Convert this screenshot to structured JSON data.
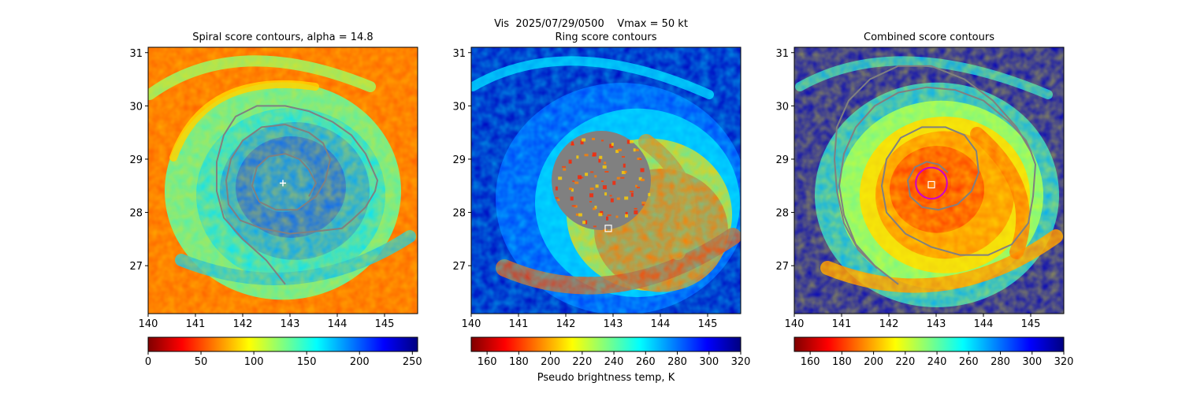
{
  "figure": {
    "suptitle": "Vis  2025/07/29/0500    Vmax = 50 kt",
    "colorbar_label": "Pseudo brightness temp, K"
  },
  "chart_data": [
    {
      "type": "heatmap",
      "title": "Spiral score contours, alpha = 14.8",
      "xlim": [
        140,
        145.7
      ],
      "ylim": [
        26.1,
        31.1
      ],
      "xticks": [
        140,
        141,
        142,
        143,
        144,
        145
      ],
      "yticks": [
        27,
        28,
        29,
        30,
        31
      ],
      "colormap": "jet_r",
      "colorbar": {
        "range": [
          0,
          255
        ],
        "ticks": [
          0,
          50,
          100,
          150,
          200,
          250
        ]
      },
      "center_marker": {
        "type": "plus",
        "x": 142.85,
        "y": 28.55,
        "color": "#ffffff"
      },
      "spiral_contour": {
        "color": "#808080",
        "points": [
          [
            142.9,
            26.65
          ],
          [
            142.5,
            27.1
          ],
          [
            142.0,
            27.5
          ],
          [
            141.6,
            27.9
          ],
          [
            141.45,
            28.4
          ],
          [
            141.45,
            28.95
          ],
          [
            141.6,
            29.45
          ],
          [
            141.85,
            29.8
          ],
          [
            142.3,
            30.0
          ],
          [
            142.9,
            30.0
          ],
          [
            143.4,
            29.9
          ],
          [
            143.9,
            29.7
          ],
          [
            144.3,
            29.45
          ],
          [
            144.6,
            29.1
          ],
          [
            144.85,
            28.6
          ],
          [
            144.8,
            28.4
          ],
          [
            144.6,
            28.1
          ],
          [
            144.3,
            27.85
          ],
          [
            144.1,
            27.7
          ],
          [
            143.6,
            27.65
          ],
          [
            143.0,
            27.6
          ],
          [
            142.4,
            27.7
          ],
          [
            141.95,
            27.85
          ],
          [
            141.7,
            28.15
          ],
          [
            141.65,
            28.6
          ],
          [
            141.75,
            29.0
          ],
          [
            142.0,
            29.35
          ],
          [
            142.4,
            29.6
          ],
          [
            142.9,
            29.65
          ],
          [
            143.4,
            29.5
          ],
          [
            143.7,
            29.3
          ],
          [
            143.85,
            29.0
          ],
          [
            143.75,
            28.6
          ],
          [
            143.55,
            28.3
          ],
          [
            143.15,
            28.05
          ],
          [
            142.7,
            28.05
          ],
          [
            142.35,
            28.2
          ],
          [
            142.2,
            28.5
          ],
          [
            142.3,
            28.85
          ],
          [
            142.55,
            29.05
          ],
          [
            142.9,
            29.1
          ],
          [
            143.2,
            29.0
          ],
          [
            143.4,
            28.8
          ],
          [
            143.55,
            28.55
          ],
          [
            143.4,
            28.3
          ]
        ]
      }
    },
    {
      "type": "heatmap",
      "title": "Ring score contours",
      "xlim": [
        140,
        145.7
      ],
      "ylim": [
        26.1,
        31.1
      ],
      "xticks": [
        140,
        141,
        142,
        143,
        144,
        145
      ],
      "yticks": [
        27,
        28,
        29,
        30,
        31
      ],
      "colormap": "jet_r",
      "colorbar": {
        "range": [
          150,
          320
        ],
        "ticks": [
          160,
          180,
          200,
          220,
          240,
          260,
          280,
          300,
          320
        ]
      },
      "masked_disk": {
        "center": [
          142.75,
          28.6
        ],
        "radius_deg": 1.05,
        "color": "#808080"
      },
      "square_marker": {
        "x": 142.9,
        "y": 27.7,
        "color": "#ffffff"
      }
    },
    {
      "type": "heatmap",
      "title": "Combined score contours",
      "xlim": [
        140,
        145.7
      ],
      "ylim": [
        26.1,
        31.1
      ],
      "xticks": [
        140,
        141,
        142,
        143,
        144,
        145
      ],
      "yticks": [
        27,
        28,
        29,
        30,
        31
      ],
      "colormap": "jet_r",
      "colorbar": {
        "range": [
          150,
          320
        ],
        "ticks": [
          160,
          180,
          200,
          220,
          240,
          260,
          280,
          300,
          320
        ]
      },
      "circle_marker": {
        "x": 142.9,
        "y": 28.55,
        "radius_deg": 0.33,
        "color": "#cc00cc"
      },
      "square_marker": {
        "x": 142.9,
        "y": 28.52,
        "color": "#ffffff"
      },
      "spiral_contour": {
        "color": "#808080",
        "points": [
          [
            142.2,
            26.65
          ],
          [
            141.7,
            27.0
          ],
          [
            141.3,
            27.4
          ],
          [
            141.05,
            27.95
          ],
          [
            140.95,
            28.5
          ],
          [
            141.05,
            29.1
          ],
          [
            141.3,
            29.6
          ],
          [
            141.7,
            30.0
          ],
          [
            142.2,
            30.25
          ],
          [
            142.8,
            30.35
          ],
          [
            143.4,
            30.3
          ],
          [
            144.0,
            30.1
          ],
          [
            144.55,
            29.7
          ],
          [
            144.9,
            29.35
          ],
          [
            145.0,
            29.15
          ],
          [
            145.1,
            28.9
          ],
          [
            145.05,
            28.3
          ],
          [
            144.95,
            27.8
          ],
          [
            144.6,
            27.4
          ],
          [
            144.1,
            27.2
          ],
          [
            143.5,
            27.2
          ],
          [
            142.9,
            27.35
          ],
          [
            142.35,
            27.6
          ],
          [
            141.95,
            28.0
          ],
          [
            141.85,
            28.5
          ],
          [
            141.95,
            29.0
          ],
          [
            142.25,
            29.4
          ],
          [
            142.7,
            29.6
          ],
          [
            143.2,
            29.6
          ],
          [
            143.6,
            29.45
          ],
          [
            143.85,
            29.15
          ],
          [
            143.9,
            28.75
          ],
          [
            143.75,
            28.4
          ],
          [
            143.45,
            28.15
          ],
          [
            143.05,
            28.05
          ],
          [
            142.7,
            28.1
          ],
          [
            142.45,
            28.3
          ],
          [
            142.4,
            28.6
          ],
          [
            142.55,
            28.85
          ],
          [
            142.8,
            28.95
          ],
          [
            143.05,
            28.9
          ],
          [
            143.25,
            28.75
          ]
        ]
      },
      "outer_arm": {
        "color": "#808080",
        "points": [
          [
            145.0,
            29.15
          ],
          [
            144.7,
            29.6
          ],
          [
            144.2,
            30.1
          ],
          [
            143.6,
            30.5
          ],
          [
            142.9,
            30.75
          ],
          [
            142.2,
            30.75
          ],
          [
            141.6,
            30.5
          ],
          [
            141.15,
            30.1
          ],
          [
            140.9,
            29.6
          ],
          [
            140.85,
            29.0
          ],
          [
            140.9,
            28.4
          ],
          [
            141.05,
            27.8
          ],
          [
            141.35,
            27.3
          ],
          [
            141.75,
            26.95
          ]
        ]
      }
    }
  ]
}
